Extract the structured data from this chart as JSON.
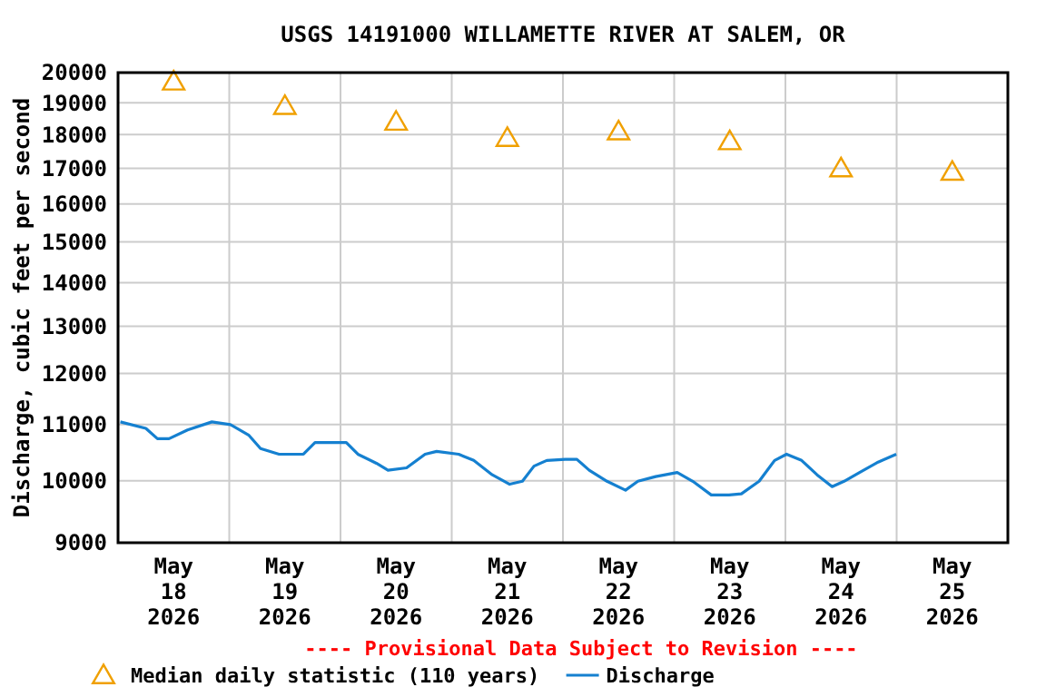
{
  "chart_data": {
    "type": "line",
    "title": "USGS 14191000 WILLAMETTE RIVER AT SALEM, OR",
    "ylabel": "Discharge, cubic feet per second",
    "annotations": [
      "---- Provisional Data Subject to Revision ----"
    ],
    "log": "y",
    "grid": true,
    "legend": "bottom",
    "xlim": [
      "2026-05-18",
      "2026-05-26"
    ],
    "xticks": [
      {
        "value": "2026-05-18T12:00",
        "label": "May\n18\n2026"
      },
      {
        "value": "2026-05-19T12:00",
        "label": "May\n19\n2026"
      },
      {
        "value": "2026-05-20T12:00",
        "label": "May\n20\n2026"
      },
      {
        "value": "2026-05-21T12:00",
        "label": "May\n21\n2026"
      },
      {
        "value": "2026-05-22T12:00",
        "label": "May\n22\n2026"
      },
      {
        "value": "2026-05-23T12:00",
        "label": "May\n23\n2026"
      },
      {
        "value": "2026-05-24T12:00",
        "label": "May\n24\n2026"
      },
      {
        "value": "2026-05-25T12:00",
        "label": "May\n25\n2026"
      },
      {
        "value": "2026-05-19",
        "label": null
      },
      {
        "value": "2026-05-20",
        "label": null
      },
      {
        "value": "2026-05-21",
        "label": null
      },
      {
        "value": "2026-05-22",
        "label": null
      },
      {
        "value": "2026-05-23",
        "label": null
      },
      {
        "value": "2026-05-24",
        "label": null
      },
      {
        "value": "2026-05-25",
        "label": null
      }
    ],
    "ylim": [
      9000,
      20000
    ],
    "yticks": [
      9000,
      10000,
      11000,
      12000,
      13000,
      14000,
      15000,
      16000,
      17000,
      18000,
      19000,
      20000
    ],
    "series": [
      {
        "name": "Median daily statistic (110 years)",
        "type": "scatter",
        "marker": "triangle",
        "color": "#f0a000",
        "x": [
          "2026-05-18T12:00",
          "2026-05-19T12:00",
          "2026-05-20T12:00",
          "2026-05-21T12:00",
          "2026-05-22T12:00",
          "2026-05-23T12:00",
          "2026-05-24T12:00",
          "2026-05-25T12:00"
        ],
        "values": [
          19700,
          18900,
          18400,
          17900,
          18100,
          17800,
          17000,
          16900
        ]
      },
      {
        "name": "Discharge",
        "color": "#1580d0",
        "x": [
          "2026-05-18T00:30",
          "2026-05-18T06:00",
          "2026-05-18T08:30",
          "2026-05-18T11:00",
          "2026-05-18T15:00",
          "2026-05-18T20:15",
          "2026-05-19T00:15",
          "2026-05-19T04:15",
          "2026-05-19T06:45",
          "2026-05-19T10:45",
          "2026-05-19T16:00",
          "2026-05-19T18:30",
          "2026-05-20T01:15",
          "2026-05-20T03:45",
          "2026-05-20T07:45",
          "2026-05-20T10:15",
          "2026-05-20T14:15",
          "2026-05-20T18:15",
          "2026-05-20T20:45",
          "2026-05-21T01:30",
          "2026-05-21T04:45",
          "2026-05-21T08:45",
          "2026-05-21T12:30",
          "2026-05-21T15:15",
          "2026-05-21T17:45",
          "2026-05-21T20:30",
          "2026-05-22T00:30",
          "2026-05-22T03:00",
          "2026-05-22T05:40",
          "2026-05-22T09:30",
          "2026-05-22T13:30",
          "2026-05-22T16:10",
          "2026-05-22T20:00",
          "2026-05-23T00:40",
          "2026-05-23T04:00",
          "2026-05-23T08:00",
          "2026-05-23T11:50",
          "2026-05-23T14:30",
          "2026-05-23T18:20",
          "2026-05-23T21:40",
          "2026-05-24T00:15",
          "2026-05-24T03:30",
          "2026-05-24T06:50",
          "2026-05-24T10:05",
          "2026-05-24T12:40",
          "2026-05-24T16:00",
          "2026-05-24T20:00",
          "2026-05-24T23:55"
        ],
        "values": [
          11050,
          10930,
          10740,
          10740,
          10900,
          11050,
          11000,
          10800,
          10560,
          10460,
          10460,
          10670,
          10670,
          10460,
          10300,
          10180,
          10220,
          10460,
          10510,
          10460,
          10350,
          10100,
          9940,
          9990,
          10250,
          10350,
          10370,
          10370,
          10180,
          9990,
          9840,
          9990,
          10070,
          10140,
          9990,
          9760,
          9760,
          9780,
          9990,
          10350,
          10460,
          10350,
          10100,
          9900,
          9990,
          10140,
          10320,
          10460
        ]
      }
    ]
  }
}
